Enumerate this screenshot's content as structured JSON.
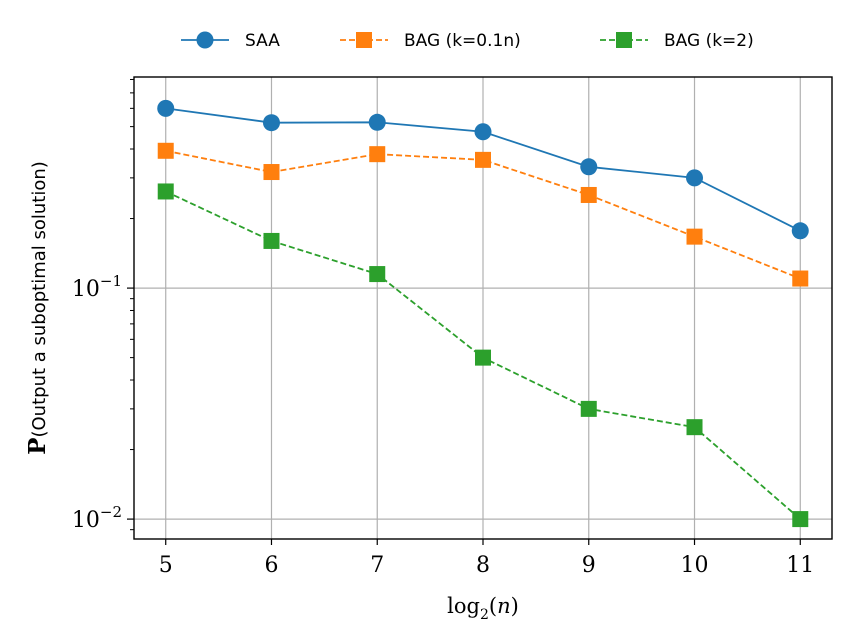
{
  "chart_data": {
    "type": "line",
    "x": [
      5,
      6,
      7,
      8,
      9,
      10,
      11
    ],
    "xlabel": "log2(n)",
    "ylabel": "P(Output a suboptimal solution)",
    "yscale": "log",
    "xlim": [
      4.7,
      11.3
    ],
    "ylim": [
      0.0082,
      0.82
    ],
    "x_ticks": [
      "5",
      "6",
      "7",
      "8",
      "9",
      "10",
      "11"
    ],
    "y_ticks": [
      {
        "value": 0.1,
        "base": "10",
        "exp": "−1"
      },
      {
        "value": 0.01,
        "base": "10",
        "exp": "−2"
      }
    ],
    "grid": true,
    "legend_position": "top-center",
    "series": [
      {
        "name": "SAA",
        "values": [
          0.6,
          0.52,
          0.522,
          0.475,
          0.335,
          0.3,
          0.177
        ],
        "color": "#1f77b4",
        "marker": "circle",
        "line": "solid"
      },
      {
        "name": "BAG (k=0.1n)",
        "values": [
          0.393,
          0.318,
          0.38,
          0.359,
          0.253,
          0.167,
          0.11
        ],
        "color": "#ff7f0e",
        "marker": "square",
        "line": "dashed"
      },
      {
        "name": "BAG (k=2)",
        "values": [
          0.262,
          0.16,
          0.115,
          0.05,
          0.03,
          0.025,
          0.01
        ],
        "color": "#2ca02c",
        "marker": "square",
        "line": "dashed"
      }
    ]
  }
}
